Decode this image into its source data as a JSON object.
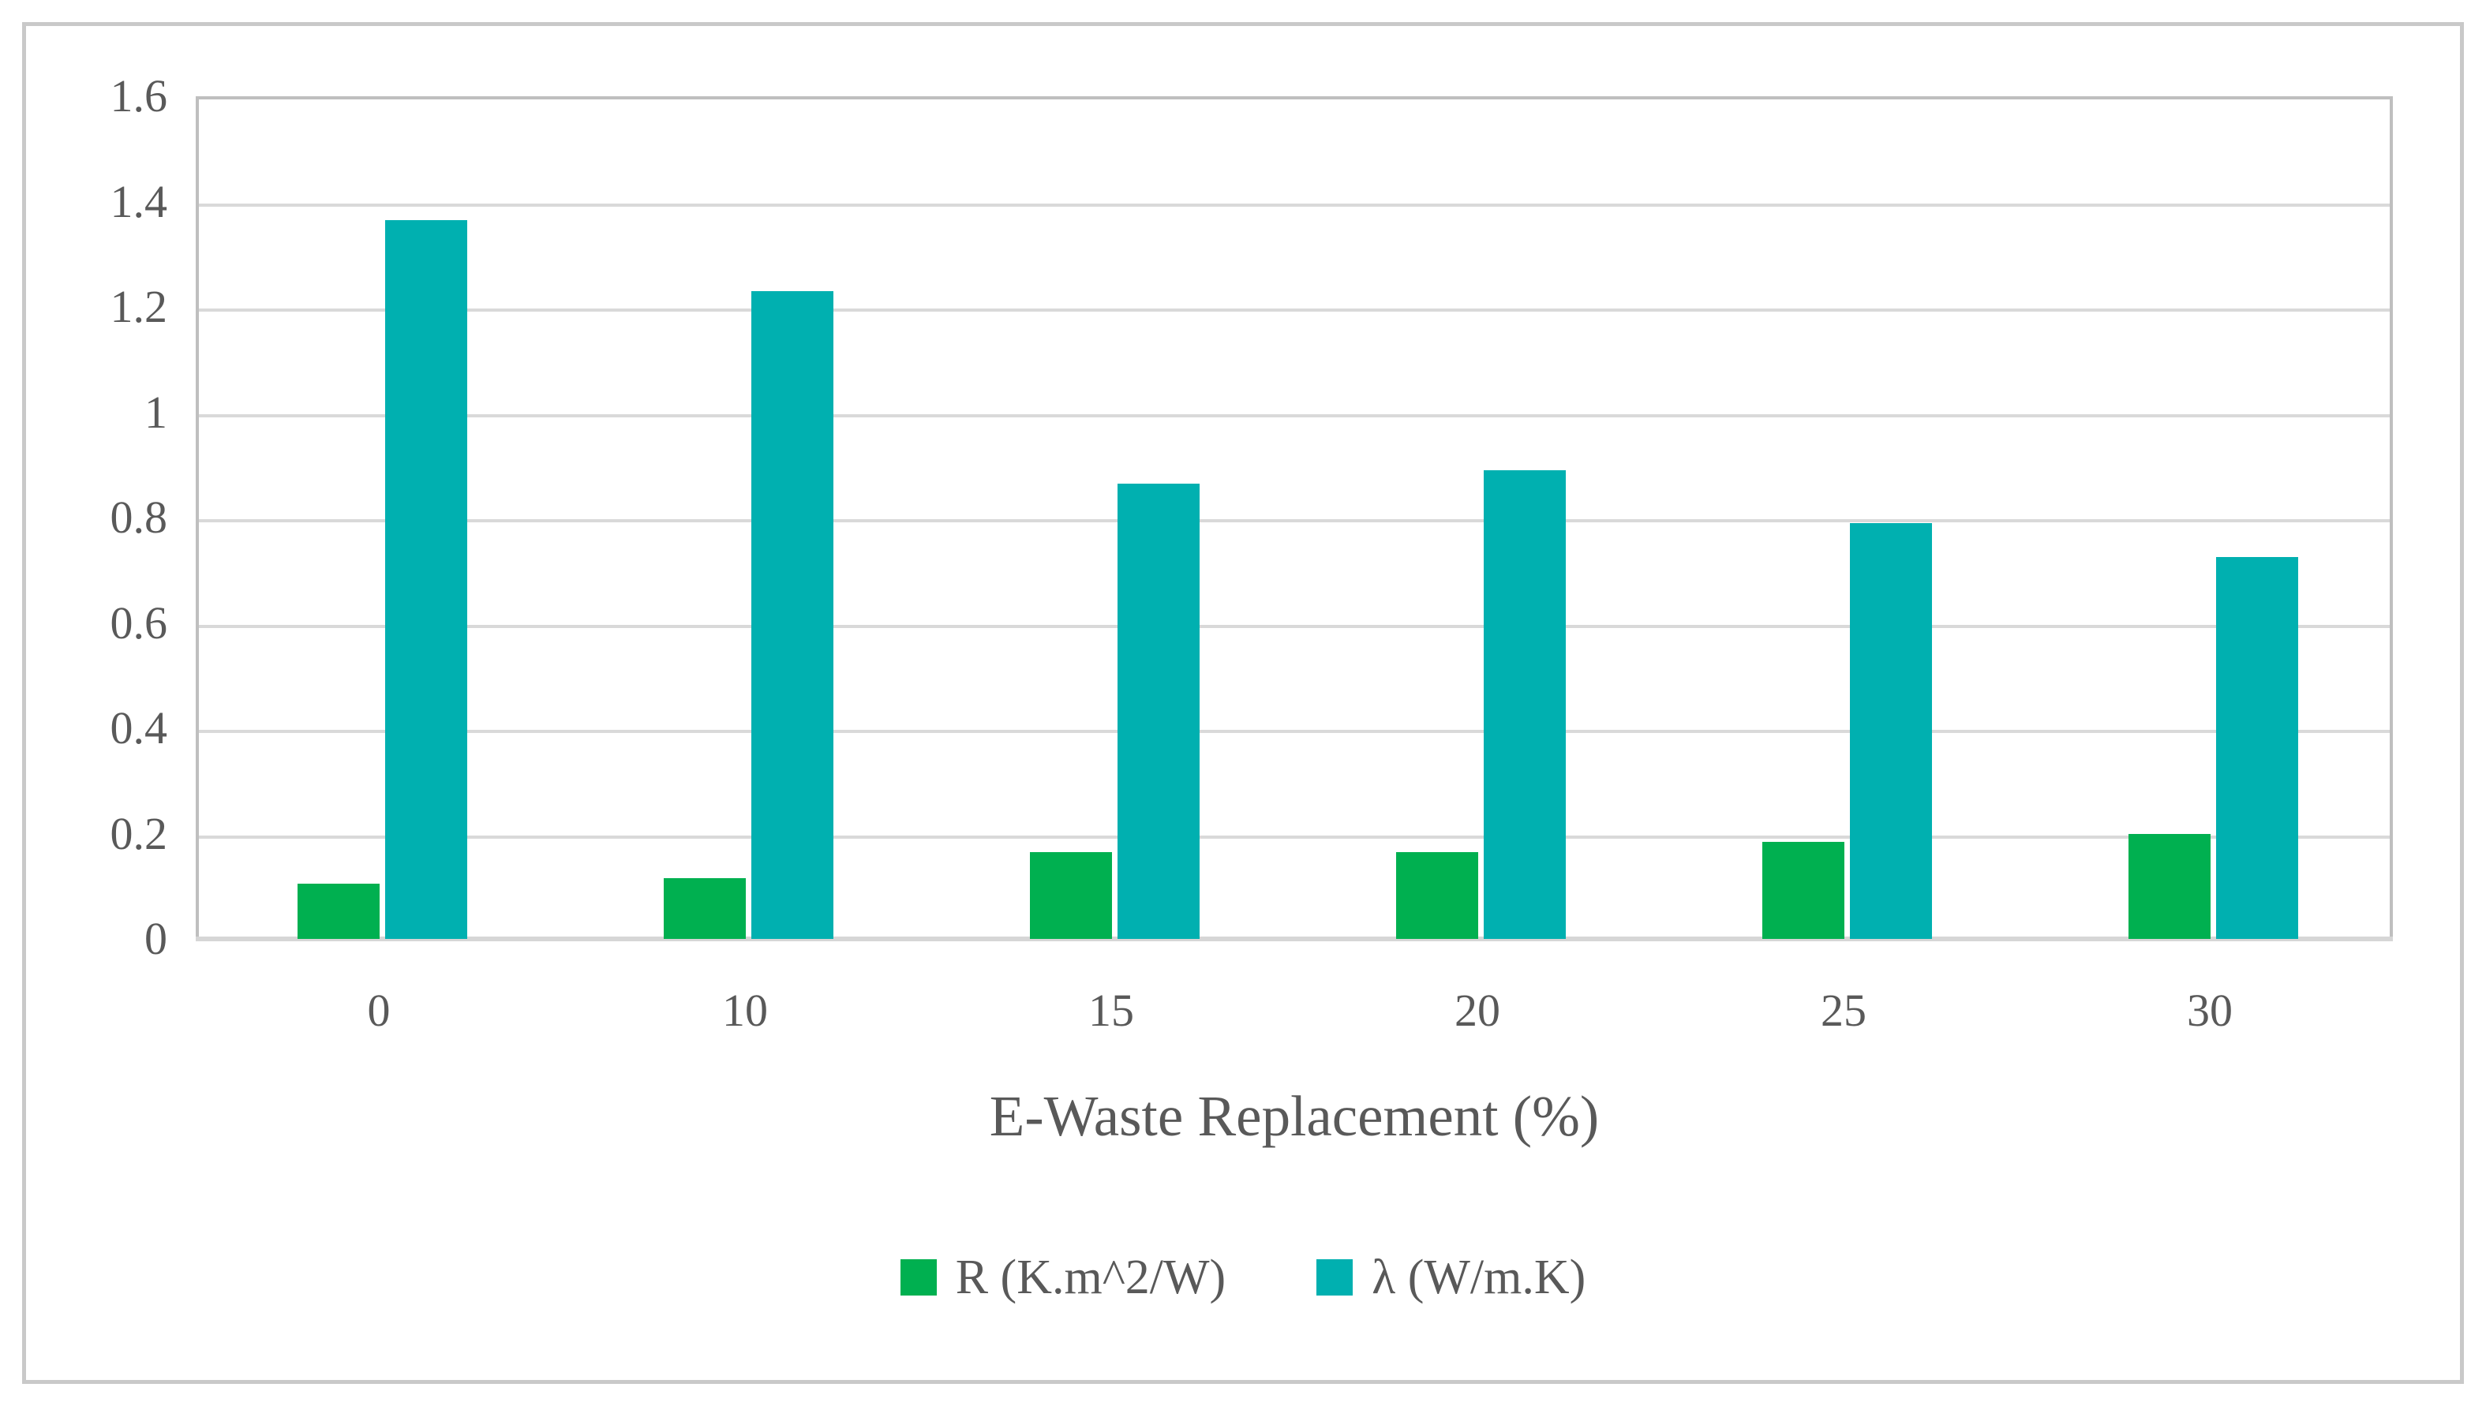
{
  "figure": {
    "background_color": "#ffffff",
    "border_color": "#c9c9c9",
    "gridline_color": "#d9d9d9",
    "plot_border_color": "#bfbfbf",
    "text_color": "#595959"
  },
  "chart_data": {
    "type": "bar",
    "title": "",
    "xlabel": "E-Waste Replacement (%)",
    "ylabel": "",
    "categories": [
      "0",
      "10",
      "15",
      "20",
      "25",
      "30"
    ],
    "series": [
      {
        "name": "R (K.m^2/W)",
        "color": "#00B050",
        "values": [
          0.105,
          0.115,
          0.165,
          0.165,
          0.185,
          0.2
        ]
      },
      {
        "name": "λ (W/m.K)",
        "color": "#00B0B0",
        "values": [
          1.365,
          1.23,
          0.865,
          0.89,
          0.79,
          0.725
        ]
      }
    ],
    "ylim": [
      0,
      1.6
    ],
    "ytick_step": 0.2,
    "yticks": [
      "0",
      "0.2",
      "0.4",
      "0.6",
      "0.8",
      "1",
      "1.2",
      "1.4",
      "1.6"
    ],
    "grid": true,
    "legend_position": "bottom-center"
  }
}
